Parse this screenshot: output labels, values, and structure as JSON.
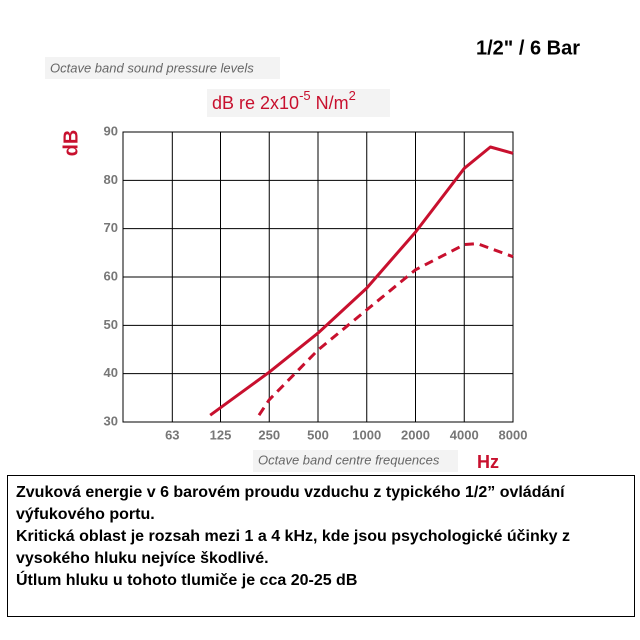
{
  "chart_data": {
    "type": "line",
    "title": "1/2\" / 6 Bar",
    "subtitle": "Octave band sound pressure levels",
    "unit_label": {
      "base": "dB re 2x10",
      "exp1": "-5",
      "mid": " N/m",
      "exp2": "2"
    },
    "y_label": "dB",
    "x_label": "Octave band centre frequences",
    "x_unit": "Hz",
    "x_scale": "log",
    "xlim": [
      31.25,
      8000
    ],
    "xticks": [
      63,
      125,
      250,
      500,
      1000,
      2000,
      4000,
      8000
    ],
    "ylim": [
      30,
      90
    ],
    "yticks": [
      30,
      40,
      50,
      60,
      70,
      80,
      90
    ],
    "grid": true,
    "series": [
      {
        "color": "#c8102e",
        "dashed": false,
        "x": [
          108,
          250,
          500,
          1000,
          2000,
          4000,
          5800,
          8000
        ],
        "values": [
          31.4,
          40.3,
          48.4,
          57.7,
          69.3,
          82.5,
          86.9,
          85.6
        ]
      },
      {
        "color": "#c8102e",
        "dashed": true,
        "x": [
          216,
          250,
          500,
          1000,
          2000,
          4000,
          4810,
          8000
        ],
        "values": [
          31.4,
          34.6,
          44.9,
          53.2,
          61.5,
          66.7,
          66.9,
          64.2
        ]
      }
    ]
  },
  "description": [
    "Zvuková energie v 6 barovém proudu vzduchu z typického 1/2” ovládání výfukového portu.",
    "Kritická oblast je rozsah mezi 1 a 4 kHz, kde jsou psychologické účinky z vysokého hluku nejvíce škodlivé.",
    "Útlum hluku u tohoto tlumiče je cca 20-25 dB"
  ]
}
